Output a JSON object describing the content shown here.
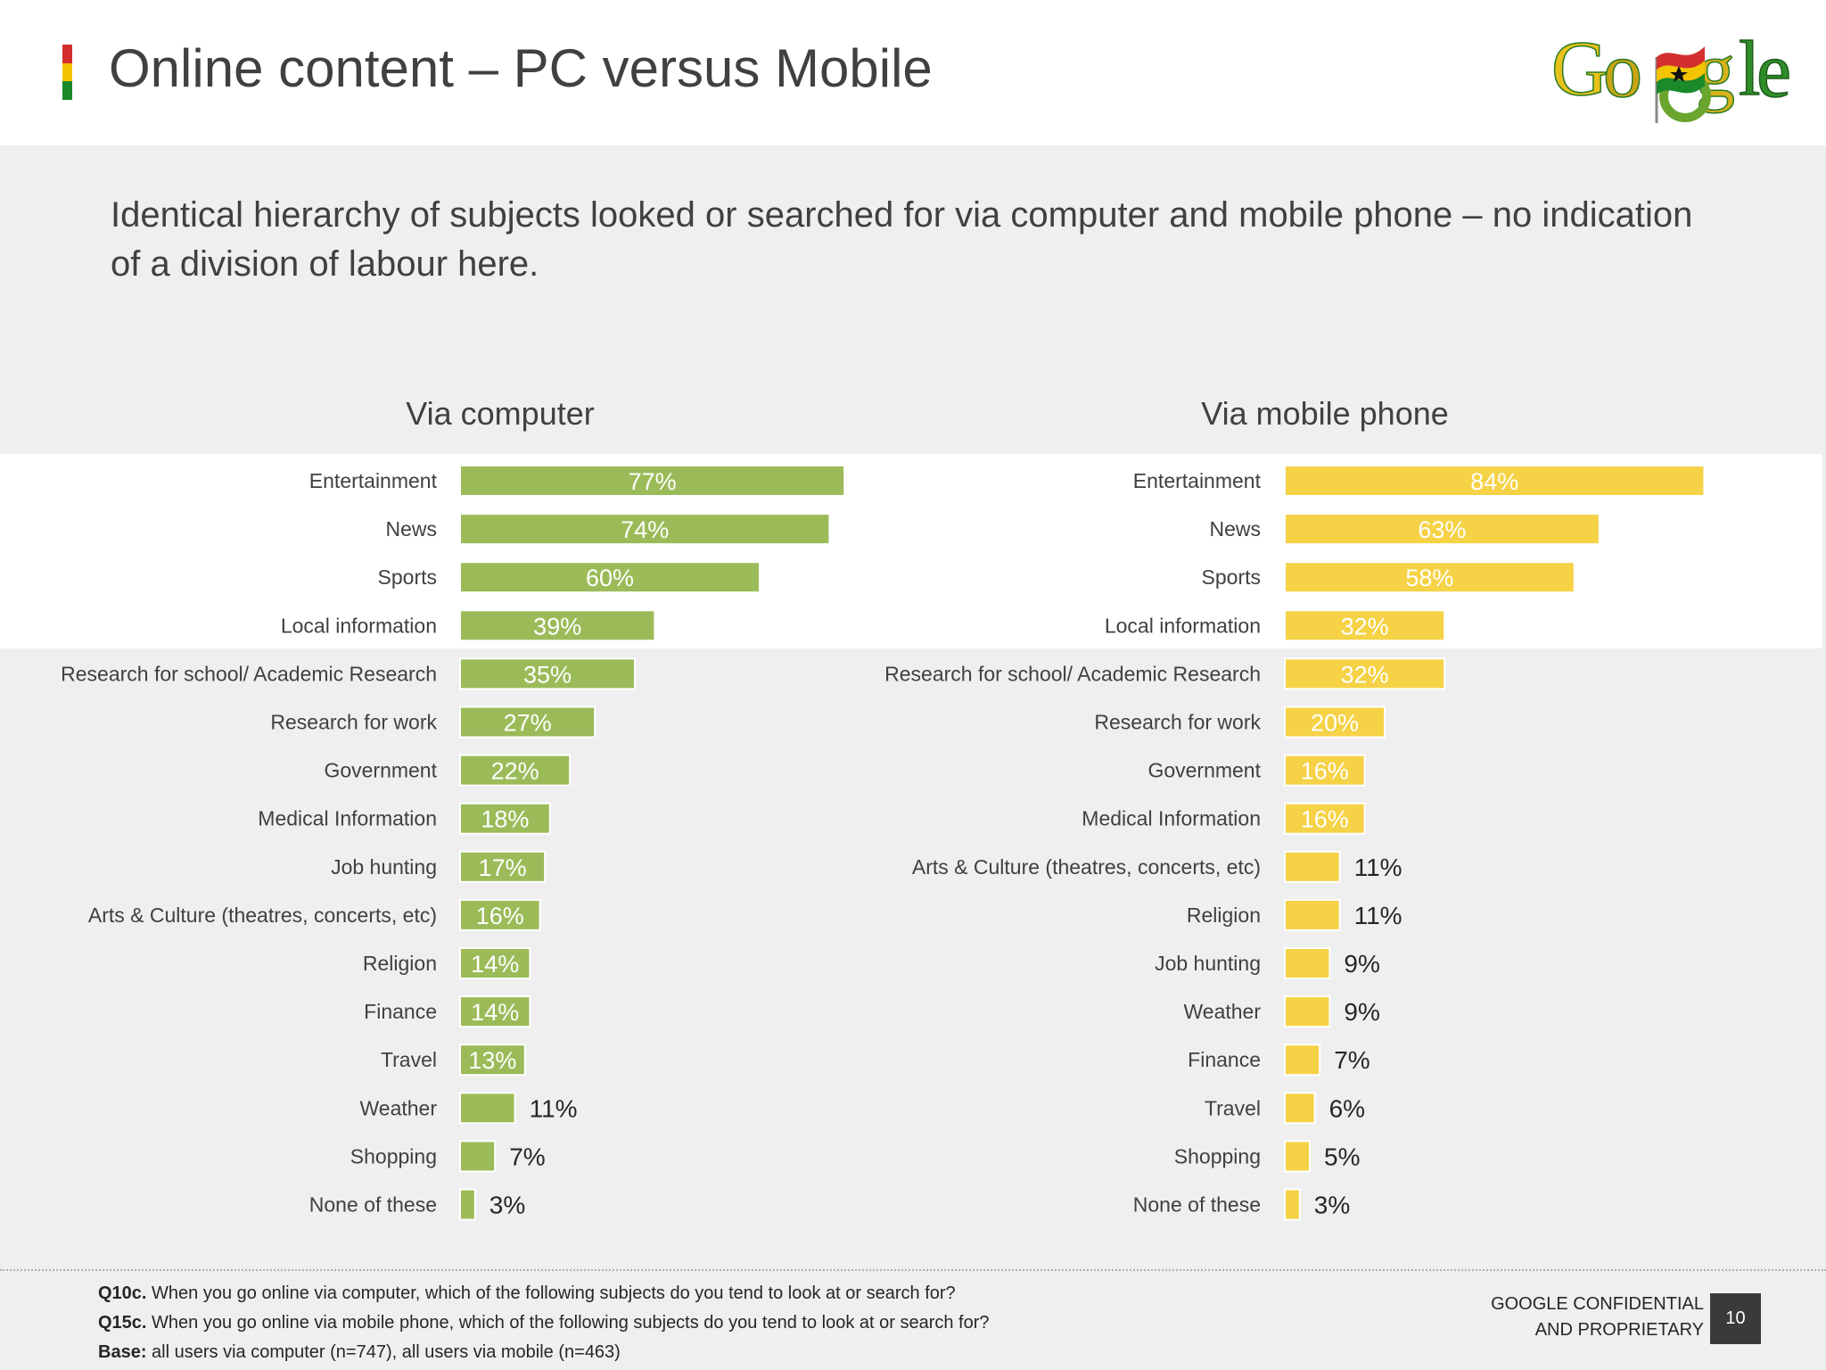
{
  "header": {
    "title": "Online content – PC versus Mobile",
    "logo_text": "Google",
    "flag_colors": [
      "#d32f2f",
      "#f2c500",
      "#1a8a2a"
    ]
  },
  "subtitle": "Identical hierarchy of subjects looked or searched for via computer and mobile phone – no indication of a division of labour here.",
  "colors": {
    "computer_bar": "#9bbb59",
    "mobile_bar": "#f5d246",
    "highlight_band": "#ffffff"
  },
  "chart_data": [
    {
      "type": "bar",
      "orientation": "horizontal",
      "title": "Via computer",
      "unit": "%",
      "xlim": [
        0,
        100
      ],
      "grid": false,
      "categories": [
        "Entertainment",
        "News",
        "Sports",
        "Local information",
        "Research for school/ Academic Research",
        "Research for work",
        "Government",
        "Medical Information",
        "Job hunting",
        "Arts & Culture (theatres, concerts, etc)",
        "Religion",
        "Finance",
        "Travel",
        "Weather",
        "Shopping",
        "None of these"
      ],
      "values": [
        77,
        74,
        60,
        39,
        35,
        27,
        22,
        18,
        17,
        16,
        14,
        14,
        13,
        11,
        7,
        3
      ],
      "highlighted_categories": [
        "Entertainment",
        "News",
        "Sports",
        "Local information"
      ]
    },
    {
      "type": "bar",
      "orientation": "horizontal",
      "title": "Via mobile phone",
      "unit": "%",
      "xlim": [
        0,
        100
      ],
      "grid": false,
      "categories": [
        "Entertainment",
        "News",
        "Sports",
        "Local information",
        "Research for school/ Academic Research",
        "Research for work",
        "Government",
        "Medical Information",
        "Arts & Culture (theatres, concerts, etc)",
        "Religion",
        "Job hunting",
        "Weather",
        "Finance",
        "Travel",
        "Shopping",
        "None of these"
      ],
      "values": [
        84,
        63,
        58,
        32,
        32,
        20,
        16,
        16,
        11,
        11,
        9,
        9,
        7,
        6,
        5,
        3
      ],
      "highlighted_categories": [
        "Entertainment",
        "News",
        "Sports",
        "Local information"
      ]
    }
  ],
  "footer": {
    "q10c_label": "Q10c.",
    "q10c_text": " When you go online via computer, which of the following subjects do you tend to look at or search for?",
    "q15c_label": "Q15c.",
    "q15c_text": " When you go online via mobile phone, which of the following subjects do you tend to look at or search for?",
    "base_label": "Base:",
    "base_text": " all users via computer (n=747), all users via mobile (n=463)",
    "confidential_line1": "GOOGLE CONFIDENTIAL",
    "confidential_line2": "AND PROPRIETARY",
    "page_number": "10"
  }
}
